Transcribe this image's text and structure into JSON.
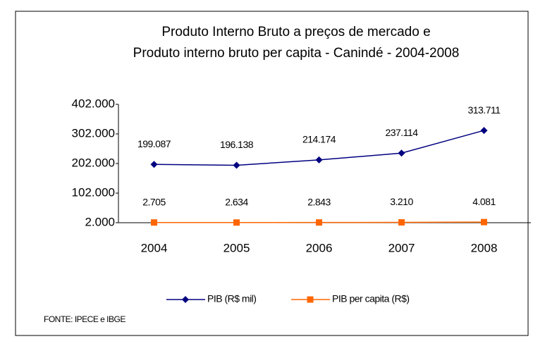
{
  "chart_data": {
    "type": "line",
    "title": [
      "Produto Interno Bruto a preços de mercado  e",
      "Produto interno bruto per capita - Canindé - 2004-2008"
    ],
    "categories": [
      "2004",
      "2005",
      "2006",
      "2007",
      "2008"
    ],
    "series": [
      {
        "name": "PIB (R$ mil)",
        "color": "#000080",
        "marker": "diamond",
        "values": [
          199087,
          196138,
          214174,
          237114,
          313711
        ],
        "value_labels": [
          "199.087",
          "196.138",
          "214.174",
          "237.114",
          "313.711"
        ]
      },
      {
        "name": "PIB per capita (R$)",
        "color": "#ff6600",
        "marker": "square",
        "values": [
          2705,
          2634,
          2843,
          3210,
          4081
        ],
        "value_labels": [
          "2.705",
          "2.634",
          "2.843",
          "3.210",
          "4.081"
        ]
      }
    ],
    "ylim": [
      2000,
      402000
    ],
    "yticks": [
      {
        "value": 2000,
        "label": "2.000"
      },
      {
        "value": 102000,
        "label": "102.000"
      },
      {
        "value": 202000,
        "label": "202.000"
      },
      {
        "value": 302000,
        "label": "302.000"
      },
      {
        "value": 402000,
        "label": "402.000"
      }
    ],
    "legend": "bottom",
    "source": "FONTE: IPECE e IBGE"
  }
}
